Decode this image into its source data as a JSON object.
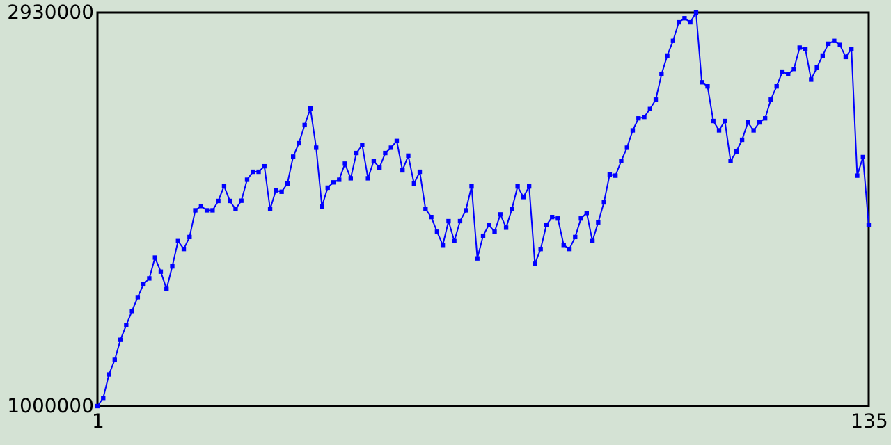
{
  "chart_data": {
    "type": "line",
    "marker": "square",
    "grid": false,
    "x": [
      1,
      2,
      3,
      4,
      5,
      6,
      7,
      8,
      9,
      10,
      11,
      12,
      13,
      14,
      15,
      16,
      17,
      18,
      19,
      20,
      21,
      22,
      23,
      24,
      25,
      26,
      27,
      28,
      29,
      30,
      31,
      32,
      33,
      34,
      35,
      36,
      37,
      38,
      39,
      40,
      41,
      42,
      43,
      44,
      45,
      46,
      47,
      48,
      49,
      50,
      51,
      52,
      53,
      54,
      55,
      56,
      57,
      58,
      59,
      60,
      61,
      62,
      63,
      64,
      65,
      66,
      67,
      68,
      69,
      70,
      71,
      72,
      73,
      74,
      75,
      76,
      77,
      78,
      79,
      80,
      81,
      82,
      83,
      84,
      85,
      86,
      87,
      88,
      89,
      90,
      91,
      92,
      93,
      94,
      95,
      96,
      97,
      98,
      99,
      100,
      101,
      102,
      103,
      104,
      105,
      106,
      107,
      108,
      109,
      110,
      111,
      112,
      113,
      114,
      115,
      116,
      117,
      118,
      119,
      120,
      121,
      122,
      123,
      124,
      125,
      126,
      127,
      128,
      129,
      130,
      131,
      132,
      133,
      134,
      135
    ],
    "series": [
      {
        "color": "#0000ff",
        "values": [
          1000000,
          1040000,
          1155000,
          1227000,
          1325000,
          1397000,
          1466000,
          1534000,
          1597000,
          1626000,
          1728000,
          1659000,
          1574000,
          1685000,
          1809000,
          1770000,
          1829000,
          1960000,
          1981000,
          1960000,
          1960000,
          2006000,
          2079000,
          2006000,
          1966000,
          2007000,
          2110000,
          2149000,
          2149000,
          2176000,
          1966000,
          2058000,
          2051000,
          2091000,
          2223000,
          2289000,
          2378000,
          2459000,
          2267000,
          1979000,
          2071000,
          2097000,
          2110000,
          2189000,
          2117000,
          2241000,
          2280000,
          2117000,
          2202000,
          2169000,
          2241000,
          2267000,
          2300000,
          2156000,
          2228000,
          2091000,
          2149000,
          1966000,
          1927000,
          1855000,
          1790000,
          1907000,
          1809000,
          1907000,
          1960000,
          2077000,
          1724000,
          1835000,
          1888000,
          1855000,
          1940000,
          1875000,
          1966000,
          2077000,
          2025000,
          2077000,
          1698000,
          1770000,
          1888000,
          1927000,
          1920000,
          1790000,
          1770000,
          1829000,
          1920000,
          1947000,
          1809000,
          1901000,
          1999000,
          2136000,
          2130000,
          2202000,
          2267000,
          2352000,
          2411000,
          2418000,
          2457000,
          2503000,
          2627000,
          2719000,
          2791000,
          2882000,
          2902000,
          2882000,
          2930000,
          2588000,
          2568000,
          2398000,
          2352000,
          2398000,
          2202000,
          2248000,
          2306000,
          2391000,
          2352000,
          2391000,
          2411000,
          2503000,
          2568000,
          2640000,
          2627000,
          2653000,
          2758000,
          2751000,
          2601000,
          2660000,
          2719000,
          2777000,
          2791000,
          2771000,
          2712000,
          2751000,
          2130000,
          2221000,
          1888000
        ]
      }
    ],
    "xlim": [
      1,
      135
    ],
    "xticks": [
      1,
      135
    ],
    "ylim": [
      1000000,
      2930000
    ],
    "yticks": [
      1000000,
      2930000
    ]
  }
}
